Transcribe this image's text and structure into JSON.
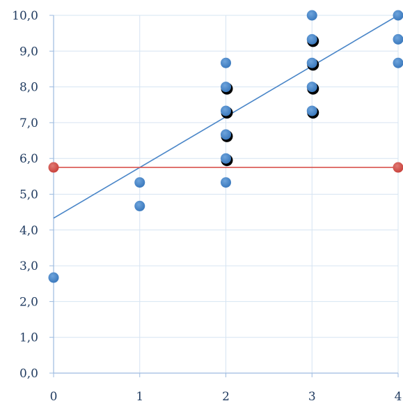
{
  "chart_data": {
    "type": "scatter",
    "title": "",
    "xlabel": "",
    "ylabel": "",
    "xlim": [
      0,
      4
    ],
    "ylim": [
      0,
      10
    ],
    "x_ticks": [
      "0",
      "1",
      "2",
      "3",
      "4"
    ],
    "y_ticks": [
      "0,0",
      "1,0",
      "2,0",
      "3,0",
      "4,0",
      "5,0",
      "6,0",
      "7,0",
      "8,0",
      "9,0",
      "10,0"
    ],
    "grid": true,
    "legend": "none",
    "series": [
      {
        "color": "#4a86c8",
        "shadow": false,
        "points": [
          [
            0,
            2.67
          ],
          [
            1,
            4.67
          ],
          [
            1,
            5.33
          ],
          [
            2,
            5.33
          ],
          [
            2,
            8.67
          ],
          [
            4,
            8.67
          ],
          [
            4,
            9.33
          ],
          [
            4,
            10.0
          ],
          [
            3,
            10.0
          ]
        ]
      },
      {
        "color": "#4a86c8",
        "shadow": true,
        "points": [
          [
            2,
            6.0
          ],
          [
            2,
            6.67
          ],
          [
            2,
            7.33
          ],
          [
            2,
            8.0
          ],
          [
            3,
            7.33
          ],
          [
            3,
            8.0
          ],
          [
            3,
            8.67
          ],
          [
            3,
            9.33
          ]
        ]
      },
      {
        "color": "#d9534f",
        "shadow": false,
        "points": [
          [
            0,
            5.75
          ],
          [
            4,
            5.75
          ]
        ]
      }
    ],
    "lines": [
      {
        "color": "#4a86c8",
        "from": [
          0,
          4.33
        ],
        "to": [
          4,
          10.0
        ]
      },
      {
        "color": "#d9534f",
        "from": [
          0,
          5.75
        ],
        "to": [
          4,
          5.75
        ]
      }
    ]
  }
}
